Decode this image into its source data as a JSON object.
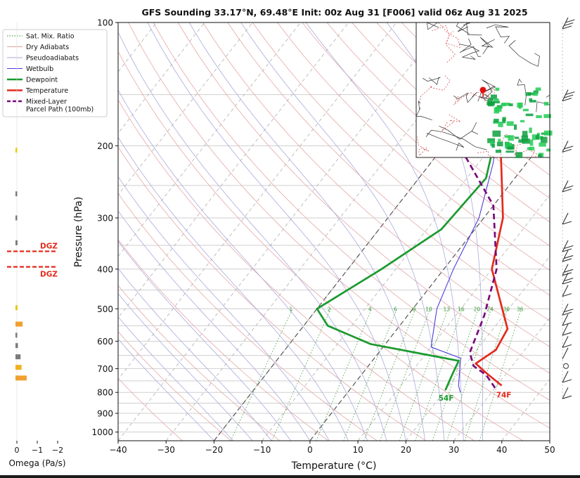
{
  "chart_data": {
    "type": "line",
    "title": "GFS Sounding 33.17°N, 69.48°E Init: 00z Aug 31 [F006] valid 06z Aug 31 2025",
    "xlabel": "Temperature (°C)",
    "ylabel": "Pressure (hPa)",
    "xlim": [
      -40,
      50
    ],
    "ylim": [
      1050,
      100
    ],
    "y_scale": "log",
    "grid": true,
    "x_ticks": [
      "−40",
      "−30",
      "−20",
      "−10",
      "0",
      "10",
      "20",
      "30",
      "40",
      "50"
    ],
    "y_ticks": [
      "100",
      "200",
      "300",
      "400",
      "500",
      "600",
      "700",
      "800",
      "900",
      "1000"
    ],
    "legend_position": "top-left",
    "legend": [
      {
        "label": "Sat. Mix. Ratio",
        "style": "dotted",
        "color": "#2e8b2e"
      },
      {
        "label": "Dry Adiabats",
        "style": "solid",
        "color": "#e0a0a0"
      },
      {
        "label": "Pseudoadiabats",
        "style": "solid",
        "color": "#a8a8d8"
      },
      {
        "label": "Wetbulb",
        "style": "solid",
        "color": "#4b3fd8"
      },
      {
        "label": "Dewpoint",
        "style": "solid",
        "color": "#1a9a2e"
      },
      {
        "label": "Temperature",
        "style": "solid",
        "color": "#e32a1c"
      },
      {
        "label": "Mixed-Layer\nParcel Path (100mb)",
        "style": "dashed",
        "color": "#7a0a7a"
      }
    ],
    "mixing_ratio_labels": [
      "1",
      "2",
      "4",
      "6",
      "8",
      "10",
      "13",
      "16",
      "20",
      "24",
      "30",
      "36"
    ],
    "series": [
      {
        "name": "Temperature",
        "color": "#e32a1c",
        "points": [
          [
            31,
            770
          ],
          [
            26,
            720
          ],
          [
            22,
            680
          ],
          [
            24,
            630
          ],
          [
            23,
            560
          ],
          [
            10,
            400
          ],
          [
            4,
            300
          ],
          [
            -4,
            230
          ],
          [
            -17,
            150
          ],
          [
            -21,
            100
          ]
        ]
      },
      {
        "name": "Dewpoint",
        "color": "#1a9a2e",
        "points": [
          [
            20,
            790
          ],
          [
            19,
            730
          ],
          [
            18,
            670
          ],
          [
            -3,
            610
          ],
          [
            -15,
            550
          ],
          [
            -20,
            500
          ],
          [
            -13,
            400
          ],
          [
            -7,
            320
          ],
          [
            -6,
            240
          ],
          [
            -13,
            170
          ],
          [
            -17,
            120
          ],
          [
            -19,
            100
          ]
        ]
      },
      {
        "name": "Wetbulb",
        "color": "#4b3fd8",
        "points": [
          [
            23.5,
            800
          ],
          [
            22,
            770
          ],
          [
            18,
            660
          ],
          [
            10,
            620
          ],
          [
            5,
            500
          ],
          [
            2,
            400
          ],
          [
            -1,
            300
          ],
          [
            -7,
            220
          ],
          [
            -16,
            150
          ],
          [
            -22,
            100
          ]
        ]
      },
      {
        "name": "Mixed-Layer\nParcel Path (100mb)",
        "color": "#7a0a7a",
        "points": [
          [
            30,
            780
          ],
          [
            26,
            725
          ],
          [
            22,
            690
          ],
          [
            19,
            640
          ],
          [
            16,
            520
          ],
          [
            11,
            400
          ],
          [
            0,
            280
          ],
          [
            -28,
            160
          ],
          [
            -44,
            100
          ]
        ]
      }
    ],
    "surface_labels": [
      {
        "text": "74F",
        "color": "#e32a1c"
      },
      {
        "text": "54F",
        "color": "#1a9a2e"
      }
    ],
    "omega": {
      "label": "Omega (Pa/s)",
      "ticks": [
        "0",
        "−1",
        "−2"
      ],
      "dgz_labels": [
        "DGZ",
        "DGZ"
      ],
      "bars": [
        {
          "p": 205,
          "w": 0.05,
          "color": "#e6d200"
        },
        {
          "p": 262,
          "w": 0.03,
          "color": "#7a7a7a"
        },
        {
          "p": 300,
          "w": 0.06,
          "color": "#7a7a7a"
        },
        {
          "p": 345,
          "w": 0.1,
          "color": "#7a7a7a"
        },
        {
          "p": 497,
          "w": 0.1,
          "color": "#e6c800"
        },
        {
          "p": 545,
          "w": 0.35,
          "color": "#f0a030"
        },
        {
          "p": 580,
          "w": 0.05,
          "color": "#7a7a7a"
        },
        {
          "p": 615,
          "w": 0.12,
          "color": "#7a7a7a"
        },
        {
          "p": 655,
          "w": 0.25,
          "color": "#7a7a7a"
        },
        {
          "p": 695,
          "w": 0.3,
          "color": "#f0b020"
        },
        {
          "p": 738,
          "w": 0.55,
          "color": "#f0a030"
        }
      ]
    }
  }
}
